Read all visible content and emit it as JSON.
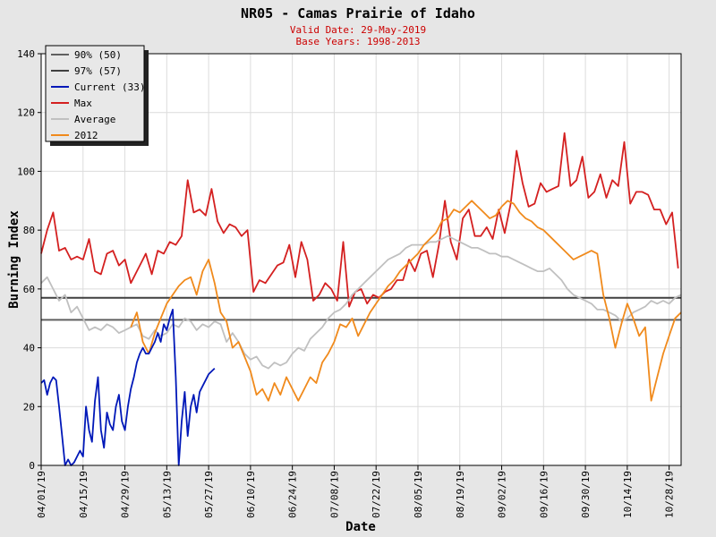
{
  "chart_data": {
    "type": "line",
    "title": "NR05 - Camas Prairie of Idaho",
    "subtitle_lines": [
      "Valid Date: 29-May-2019",
      "Base Years: 1998-2013"
    ],
    "xlabel": "Date",
    "ylabel": "Burning Index",
    "ylim": [
      0,
      140
    ],
    "y_ticks": [
      0,
      20,
      40,
      60,
      80,
      100,
      120,
      140
    ],
    "x_range_days": [
      0,
      214
    ],
    "x_tick_days": [
      0,
      14,
      28,
      42,
      56,
      70,
      84,
      98,
      112,
      126,
      140,
      154,
      168,
      182,
      196,
      210
    ],
    "x_tick_labels": [
      "04/01/19",
      "04/15/19",
      "04/29/19",
      "05/13/19",
      "05/27/19",
      "06/10/19",
      "06/24/19",
      "07/08/19",
      "07/22/19",
      "08/05/19",
      "08/19/19",
      "09/02/19",
      "09/16/19",
      "09/30/19",
      "10/14/19",
      "10/28/19"
    ],
    "grid": true,
    "legend_position": "top-left",
    "thresholds": [
      {
        "name": "90% (50)",
        "value": 49.5,
        "color": "#606060"
      },
      {
        "name": "97% (57)",
        "value": 57,
        "color": "#404040"
      }
    ],
    "series": [
      {
        "name": "Max",
        "color": "#d42020",
        "x": [
          0,
          2,
          4,
          6,
          8,
          10,
          12,
          14,
          16,
          18,
          20,
          22,
          24,
          26,
          28,
          30,
          32,
          34,
          35,
          37,
          39,
          41,
          43,
          45,
          47,
          49,
          51,
          53,
          55,
          57,
          59,
          61,
          63,
          65,
          67,
          69,
          71,
          73,
          75,
          77,
          79,
          81,
          83,
          85,
          87,
          89,
          91,
          93,
          95,
          97,
          99,
          101,
          103,
          105,
          107,
          109,
          111,
          113,
          115,
          117,
          119,
          121,
          123,
          125,
          127,
          129,
          131,
          133,
          135,
          137,
          139,
          141,
          143,
          145,
          147,
          149,
          151,
          153,
          155,
          157,
          159,
          161,
          163,
          165,
          167,
          169,
          171,
          173,
          175,
          177,
          179,
          181,
          183,
          185,
          187,
          189,
          191,
          193,
          195,
          197,
          199,
          201,
          203,
          205,
          207,
          209,
          211,
          213
        ],
        "values": [
          72,
          80,
          86,
          73,
          74,
          70,
          71,
          70,
          77,
          66,
          65,
          72,
          73,
          68,
          70,
          62,
          66,
          70,
          72,
          65,
          73,
          72,
          76,
          75,
          78,
          97,
          86,
          87,
          85,
          94,
          83,
          79,
          82,
          81,
          78,
          80,
          59,
          63,
          62,
          65,
          68,
          69,
          75,
          64,
          76,
          70,
          56,
          58,
          62,
          60,
          56,
          76,
          54,
          59,
          60,
          55,
          58,
          57,
          59,
          60,
          63,
          63,
          70,
          66,
          72,
          73,
          64,
          75,
          90,
          76,
          70,
          84,
          87,
          78,
          78,
          81,
          77,
          87,
          79,
          89,
          107,
          96,
          88,
          89,
          96,
          93,
          94,
          95,
          113,
          95,
          97,
          105,
          91,
          93,
          99,
          91,
          97,
          95,
          110,
          89,
          93,
          93,
          92,
          87,
          87,
          82,
          86,
          67
        ]
      },
      {
        "name": "Average",
        "color": "#c0c0c0",
        "x": [
          0,
          2,
          4,
          6,
          8,
          10,
          12,
          14,
          16,
          18,
          20,
          22,
          24,
          26,
          28,
          30,
          32,
          34,
          36,
          38,
          40,
          42,
          44,
          46,
          48,
          50,
          52,
          54,
          56,
          58,
          60,
          62,
          64,
          66,
          68,
          70,
          72,
          74,
          76,
          78,
          80,
          82,
          84,
          86,
          88,
          90,
          92,
          94,
          96,
          98,
          100,
          102,
          104,
          106,
          108,
          110,
          112,
          114,
          116,
          118,
          120,
          122,
          124,
          126,
          128,
          130,
          132,
          134,
          136,
          138,
          140,
          142,
          144,
          146,
          148,
          150,
          152,
          154,
          156,
          158,
          160,
          162,
          164,
          166,
          168,
          170,
          172,
          174,
          176,
          178,
          180,
          182,
          184,
          186,
          188,
          190,
          192,
          194,
          196,
          198,
          200,
          202,
          204,
          206,
          208,
          210,
          212,
          214
        ],
        "values": [
          62,
          64,
          60,
          56,
          58,
          52,
          54,
          50,
          46,
          47,
          46,
          48,
          47,
          45,
          46,
          47,
          48,
          44,
          43,
          46,
          44,
          45,
          48,
          47,
          50,
          49,
          46,
          48,
          47,
          49,
          48,
          42,
          45,
          42,
          38,
          36,
          37,
          34,
          33,
          35,
          34,
          35,
          38,
          40,
          39,
          43,
          45,
          47,
          50,
          52,
          53,
          55,
          58,
          60,
          62,
          64,
          66,
          68,
          70,
          71,
          72,
          74,
          75,
          75,
          75,
          76,
          76,
          77,
          78,
          77,
          76,
          75,
          74,
          74,
          73,
          72,
          72,
          71,
          71,
          70,
          69,
          68,
          67,
          66,
          66,
          67,
          65,
          63,
          60,
          58,
          57,
          56,
          55,
          53,
          53,
          52,
          51,
          49,
          50,
          52,
          53,
          54,
          56,
          55,
          56,
          55,
          57,
          58
        ]
      },
      {
        "name": "2012",
        "color": "#f08a1c",
        "x": [
          30,
          32,
          34,
          36,
          38,
          40,
          42,
          44,
          46,
          48,
          50,
          52,
          54,
          56,
          58,
          60,
          62,
          64,
          66,
          68,
          70,
          72,
          74,
          76,
          78,
          80,
          82,
          84,
          86,
          88,
          90,
          92,
          94,
          96,
          98,
          100,
          102,
          104,
          106,
          108,
          110,
          112,
          114,
          116,
          118,
          120,
          122,
          124,
          126,
          128,
          130,
          132,
          134,
          136,
          138,
          140,
          142,
          144,
          146,
          148,
          150,
          152,
          154,
          156,
          158,
          160,
          162,
          164,
          166,
          168,
          170,
          172,
          174,
          176,
          178,
          180,
          182,
          184,
          186,
          188,
          190,
          192,
          194,
          196,
          198,
          200,
          202,
          204,
          206,
          208,
          210,
          212,
          214
        ],
        "values": [
          47,
          52,
          42,
          38,
          45,
          50,
          55,
          58,
          61,
          63,
          64,
          58,
          66,
          70,
          62,
          52,
          49,
          40,
          42,
          37,
          32,
          24,
          26,
          22,
          28,
          24,
          30,
          26,
          22,
          26,
          30,
          28,
          35,
          38,
          42,
          48,
          47,
          50,
          44,
          48,
          52,
          55,
          58,
          61,
          63,
          66,
          68,
          70,
          72,
          75,
          77,
          79,
          83,
          84,
          87,
          86,
          88,
          90,
          88,
          86,
          84,
          85,
          88,
          90,
          89,
          86,
          84,
          83,
          81,
          80,
          78,
          76,
          74,
          72,
          70,
          71,
          72,
          73,
          72,
          58,
          50,
          40,
          48,
          55,
          50,
          44,
          47,
          22,
          30,
          38,
          44,
          50,
          52
        ]
      },
      {
        "name": "Current (33)",
        "color": "#0018b8",
        "x": [
          0,
          1,
          2,
          3,
          4,
          5,
          6,
          7,
          8,
          9,
          10,
          11,
          12,
          13,
          14,
          15,
          16,
          17,
          18,
          19,
          20,
          21,
          22,
          23,
          24,
          25,
          26,
          27,
          28,
          29,
          30,
          31,
          32,
          33,
          34,
          35,
          36,
          37,
          38,
          39,
          40,
          41,
          42,
          43,
          44,
          45,
          46,
          47,
          48,
          49,
          50,
          51,
          52,
          53,
          54,
          55,
          56,
          57,
          58
        ],
        "values": [
          28,
          29,
          24,
          28,
          30,
          29,
          20,
          10,
          0,
          2,
          0,
          1,
          3,
          5,
          3,
          20,
          12,
          8,
          22,
          30,
          12,
          6,
          18,
          14,
          12,
          20,
          24,
          15,
          12,
          20,
          26,
          30,
          35,
          38,
          40,
          38,
          38,
          40,
          42,
          45,
          42,
          48,
          46,
          50,
          53,
          30,
          0,
          15,
          25,
          10,
          20,
          24,
          18,
          25,
          27,
          29,
          31,
          32,
          33
        ]
      }
    ]
  }
}
